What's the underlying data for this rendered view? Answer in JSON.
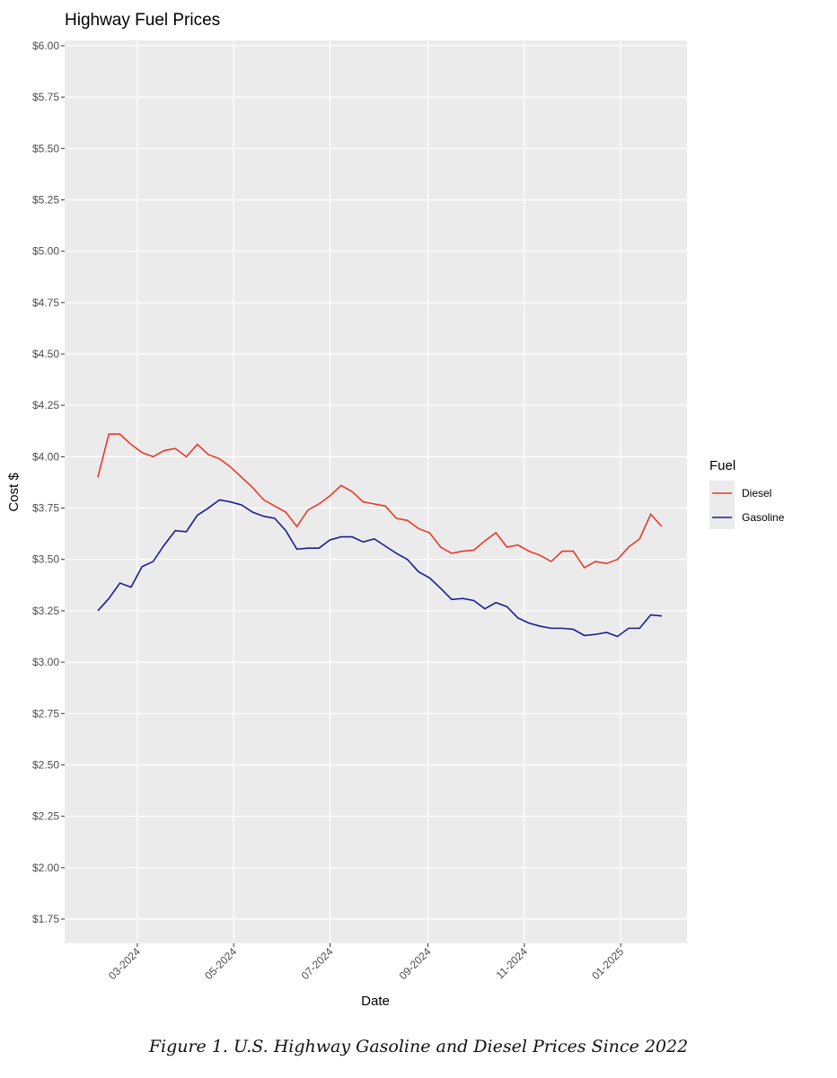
{
  "chart_data": {
    "type": "line",
    "title": "Highway Fuel Prices",
    "x_label": "Date",
    "y_label": "Cost $",
    "legend_title": "Fuel",
    "caption": "Figure 1. U.S. Highway Gasoline and Diesel Prices Since 2022",
    "x": [
      "2024-02-05",
      "2024-02-12",
      "2024-02-19",
      "2024-02-26",
      "2024-03-04",
      "2024-03-11",
      "2024-03-18",
      "2024-03-25",
      "2024-04-01",
      "2024-04-08",
      "2024-04-15",
      "2024-04-22",
      "2024-04-29",
      "2024-05-06",
      "2024-05-13",
      "2024-05-20",
      "2024-05-27",
      "2024-06-03",
      "2024-06-10",
      "2024-06-17",
      "2024-06-24",
      "2024-07-01",
      "2024-07-08",
      "2024-07-15",
      "2024-07-22",
      "2024-07-29",
      "2024-08-05",
      "2024-08-12",
      "2024-08-19",
      "2024-08-26",
      "2024-09-02",
      "2024-09-09",
      "2024-09-16",
      "2024-09-23",
      "2024-09-30",
      "2024-10-07",
      "2024-10-14",
      "2024-10-21",
      "2024-10-28",
      "2024-11-04",
      "2024-11-11",
      "2024-11-18",
      "2024-11-25",
      "2024-12-02",
      "2024-12-09",
      "2024-12-16",
      "2024-12-23",
      "2024-12-30",
      "2025-01-06",
      "2025-01-13",
      "2025-01-20",
      "2025-01-27"
    ],
    "series": [
      {
        "name": "Diesel",
        "color": "#e8392d",
        "values": [
          3.9,
          4.11,
          4.11,
          4.06,
          4.02,
          4.0,
          4.03,
          4.04,
          4.0,
          4.06,
          4.01,
          3.99,
          3.95,
          3.9,
          3.85,
          3.79,
          3.76,
          3.73,
          3.66,
          3.74,
          3.77,
          3.81,
          3.86,
          3.83,
          3.78,
          3.77,
          3.76,
          3.7,
          3.69,
          3.65,
          3.63,
          3.56,
          3.53,
          3.54,
          3.545,
          3.59,
          3.63,
          3.56,
          3.57,
          3.54,
          3.52,
          3.49,
          3.54,
          3.54,
          3.46,
          3.49,
          3.48,
          3.5,
          3.56,
          3.6,
          3.72,
          3.66
        ]
      },
      {
        "name": "Gasoline",
        "color": "#1c1c94",
        "values": [
          3.25,
          3.31,
          3.385,
          3.365,
          3.465,
          3.49,
          3.57,
          3.64,
          3.635,
          3.715,
          3.75,
          3.79,
          3.78,
          3.765,
          3.73,
          3.71,
          3.7,
          3.64,
          3.55,
          3.555,
          3.555,
          3.595,
          3.61,
          3.61,
          3.585,
          3.6,
          3.565,
          3.53,
          3.5,
          3.44,
          3.41,
          3.36,
          3.305,
          3.31,
          3.3,
          3.26,
          3.29,
          3.27,
          3.215,
          3.19,
          3.175,
          3.165,
          3.165,
          3.16,
          3.13,
          3.135,
          3.145,
          3.125,
          3.165,
          3.165,
          3.23,
          3.225
        ]
      }
    ],
    "xlim": [
      "2024-01-15",
      "2025-02-12"
    ],
    "xticks": [
      {
        "value": "2024-03-01",
        "label": "03-2024"
      },
      {
        "value": "2024-05-01",
        "label": "05-2024"
      },
      {
        "value": "2024-07-01",
        "label": "07-2024"
      },
      {
        "value": "2024-09-01",
        "label": "09-2024"
      },
      {
        "value": "2024-11-01",
        "label": "11-2024"
      },
      {
        "value": "2025-01-01",
        "label": "01-2025"
      }
    ],
    "ylim": [
      1.632,
      6.026
    ],
    "yticks": [
      {
        "value": 1.75,
        "label": "$1.75"
      },
      {
        "value": 2.0,
        "label": "$2.00"
      },
      {
        "value": 2.25,
        "label": "$2.25"
      },
      {
        "value": 2.5,
        "label": "$2.50"
      },
      {
        "value": 2.75,
        "label": "$2.75"
      },
      {
        "value": 3.0,
        "label": "$3.00"
      },
      {
        "value": 3.25,
        "label": "$3.25"
      },
      {
        "value": 3.5,
        "label": "$3.50"
      },
      {
        "value": 3.75,
        "label": "$3.75"
      },
      {
        "value": 4.0,
        "label": "$4.00"
      },
      {
        "value": 4.25,
        "label": "$4.25"
      },
      {
        "value": 4.5,
        "label": "$4.50"
      },
      {
        "value": 4.75,
        "label": "$4.75"
      },
      {
        "value": 5.0,
        "label": "$5.00"
      },
      {
        "value": 5.25,
        "label": "$5.25"
      },
      {
        "value": 5.5,
        "label": "$5.50"
      },
      {
        "value": 5.75,
        "label": "$5.75"
      },
      {
        "value": 6.0,
        "label": "$6.00"
      }
    ],
    "grid": true
  }
}
